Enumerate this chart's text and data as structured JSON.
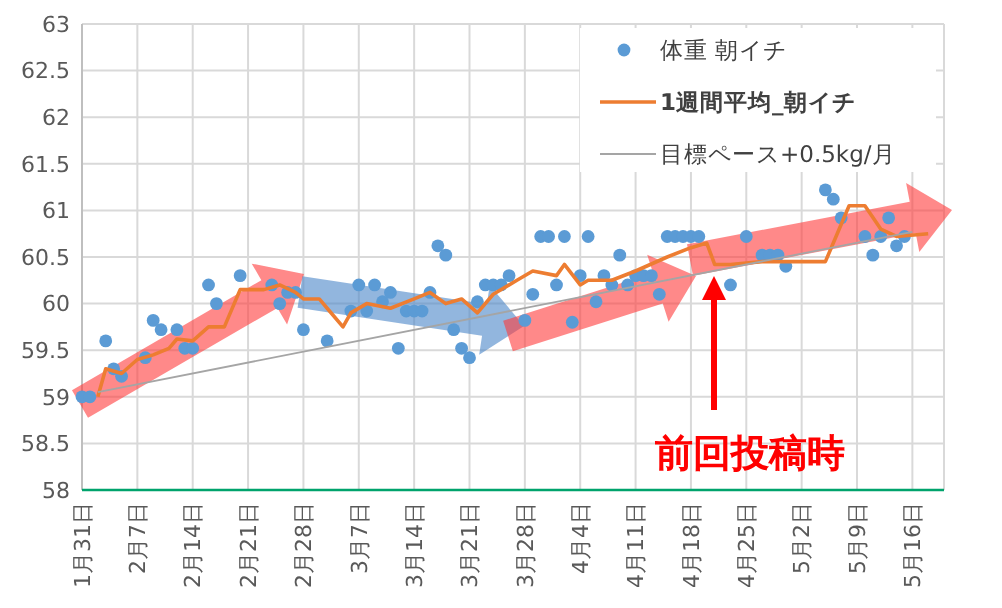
{
  "chart_data": {
    "type": "scatter",
    "legend": "top right",
    "grid": true,
    "xlim": [
      "--01-31",
      "--05-20"
    ],
    "ylim": [
      58,
      63
    ],
    "yticks": [
      58,
      58.5,
      59,
      59.5,
      60,
      60.5,
      61,
      61.5,
      62,
      62.5,
      63
    ],
    "xticks": [
      {
        "value": "--01-31",
        "label": "1月31日"
      },
      {
        "value": "--02-07",
        "label": "2月7日"
      },
      {
        "value": "--02-14",
        "label": "2月14日"
      },
      {
        "value": "--02-21",
        "label": "2月21日"
      },
      {
        "value": "--02-28",
        "label": "2月28日"
      },
      {
        "value": "--03-07",
        "label": "3月7日"
      },
      {
        "value": "--03-14",
        "label": "3月14日"
      },
      {
        "value": "--03-21",
        "label": "3月21日"
      },
      {
        "value": "--03-28",
        "label": "3月28日"
      },
      {
        "value": "--04-04",
        "label": "4月4日"
      },
      {
        "value": "--04-11",
        "label": "4月11日"
      },
      {
        "value": "--04-18",
        "label": "4月18日"
      },
      {
        "value": "--04-25",
        "label": "4月25日"
      },
      {
        "value": "--05-02",
        "label": "5月2日"
      },
      {
        "value": "--05-09",
        "label": "5月9日"
      },
      {
        "value": "--05-16",
        "label": "5月16日"
      }
    ],
    "annotations": [
      "前回投稿時"
    ],
    "series": [
      {
        "name": "体重 朝イチ",
        "marker": "circle",
        "color": "#5b9bd5",
        "x": [
          "--01-31",
          "--02-01",
          "--02-03",
          "--02-04",
          "--02-05",
          "--02-08",
          "--02-09",
          "--02-10",
          "--02-12",
          "--02-13",
          "--02-14",
          "--02-16",
          "--02-17",
          "--02-20",
          "--02-24",
          "--02-25",
          "--02-26",
          "--02-27",
          "--02-28",
          "--03-03",
          "--03-06",
          "--03-07",
          "--03-08",
          "--03-09",
          "--03-10",
          "--03-11",
          "--03-12",
          "--03-13",
          "--03-14",
          "--03-15",
          "--03-16",
          "--03-17",
          "--03-18",
          "--03-19",
          "--03-20",
          "--03-21",
          "--03-22",
          "--03-23",
          "--03-24",
          "--03-25",
          "--03-26",
          "--03-28",
          "--03-29",
          "--03-30",
          "--03-31",
          "--04-01",
          "--04-02",
          "--04-03",
          "--04-04",
          "--04-05",
          "--04-06",
          "--04-07",
          "--04-08",
          "--04-09",
          "--04-10",
          "--04-11",
          "--04-12",
          "--04-13",
          "--04-14",
          "--04-15",
          "--04-16",
          "--04-17",
          "--04-18",
          "--04-19",
          "--04-23",
          "--04-25",
          "--04-27",
          "--04-28",
          "--04-29",
          "--04-30",
          "--05-05",
          "--05-06",
          "--05-07",
          "--05-10",
          "--05-11",
          "--05-12",
          "--05-13",
          "--05-14",
          "--05-15"
        ],
        "values": [
          59.0,
          59.0,
          59.6,
          59.3,
          59.22,
          59.42,
          59.82,
          59.72,
          59.72,
          59.52,
          59.52,
          60.2,
          60.0,
          60.3,
          60.2,
          60.0,
          60.12,
          60.12,
          59.72,
          59.6,
          59.92,
          60.2,
          59.92,
          60.2,
          60.02,
          60.12,
          59.52,
          59.92,
          59.92,
          59.92,
          60.12,
          60.62,
          60.52,
          59.72,
          59.52,
          59.42,
          60.02,
          60.2,
          60.2,
          60.2,
          60.3,
          59.82,
          60.1,
          60.72,
          60.72,
          60.2,
          60.72,
          59.8,
          60.3,
          60.72,
          60.02,
          60.3,
          60.2,
          60.52,
          60.2,
          60.3,
          60.3,
          60.3,
          60.1,
          60.72,
          60.72,
          60.72,
          60.72,
          60.72,
          60.2,
          60.72,
          60.52,
          60.52,
          60.52,
          60.4,
          61.22,
          61.12,
          60.92,
          60.72,
          60.52,
          60.72,
          60.92,
          60.62,
          60.72
        ]
      },
      {
        "name": "1週間平均_朝イチ",
        "type": "line",
        "marker": "none",
        "color": "#ed7d31",
        "x": [
          "--02-02",
          "--02-03",
          "--02-05",
          "--02-07",
          "--02-09",
          "--02-11",
          "--02-12",
          "--02-14",
          "--02-16",
          "--02-18",
          "--02-20",
          "--02-23",
          "--02-25",
          "--02-27",
          "--02-28",
          "--03-02",
          "--03-03",
          "--03-05",
          "--03-06",
          "--03-08",
          "--03-11",
          "--03-14",
          "--03-16",
          "--03-18",
          "--03-20",
          "--03-22",
          "--03-24",
          "--03-27",
          "--03-29",
          "--04-01",
          "--04-02",
          "--04-04",
          "--04-05",
          "--04-08",
          "--04-11",
          "--04-15",
          "--04-18",
          "--04-20",
          "--04-21",
          "--04-23",
          "--04-27",
          "--05-01",
          "--05-05",
          "--05-08",
          "--05-10",
          "--05-12",
          "--05-14",
          "--05-18"
        ],
        "values": [
          59.0,
          59.3,
          59.25,
          59.4,
          59.45,
          59.52,
          59.62,
          59.6,
          59.75,
          59.75,
          60.15,
          60.15,
          60.2,
          60.12,
          60.05,
          60.05,
          59.95,
          59.75,
          59.9,
          60.0,
          59.95,
          60.05,
          60.12,
          60.0,
          60.05,
          59.9,
          60.1,
          60.25,
          60.35,
          60.3,
          60.42,
          60.2,
          60.25,
          60.25,
          60.35,
          60.5,
          60.6,
          60.65,
          60.42,
          60.42,
          60.45,
          60.45,
          60.45,
          61.05,
          61.05,
          60.8,
          60.72,
          60.75
        ]
      },
      {
        "name": "目標ペース+0.5kg/月",
        "type": "line",
        "marker": "none",
        "color": "#a5a5a5",
        "x": [
          "--02-02",
          "--05-16"
        ],
        "values": [
          59.05,
          60.77
        ]
      }
    ]
  }
}
